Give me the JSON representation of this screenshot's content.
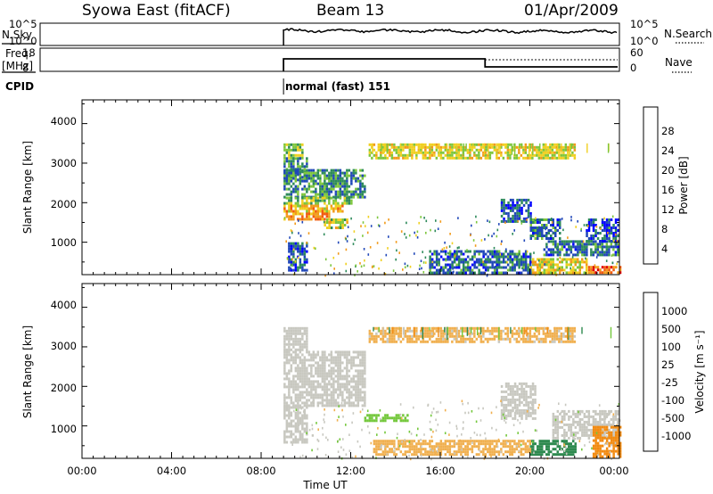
{
  "header": {
    "station": "Syowa East (fitACF)",
    "beam": "Beam 13",
    "date": "01/Apr/2009"
  },
  "panels": {
    "nsky": {
      "label": "N.Sky",
      "ticks_left": [
        "10^5",
        "10^0"
      ],
      "ticks_right": [
        "10^5",
        "10^0"
      ],
      "right_label": "N.Search"
    },
    "freq": {
      "label_line1": "Freq.",
      "label_line2": "[MHz]",
      "ticks_left": [
        "18",
        "8"
      ],
      "ticks_right": [
        "60",
        "0"
      ],
      "right_label": "Nave"
    },
    "cpid": {
      "label": "CPID",
      "value": "normal (fast) 151"
    }
  },
  "power_panel": {
    "ylabel": "Slant Range [km]",
    "yticks": [
      "4000",
      "3000",
      "2000",
      "1000"
    ],
    "colorbar_label": "Power [dB]",
    "colorbar_ticks": [
      "28",
      "24",
      "20",
      "16",
      "12",
      "8",
      "4"
    ],
    "colors": [
      "#0000ff",
      "#2047b8",
      "#2d8a5a",
      "#7dc63c",
      "#f0d020",
      "#f29a1a",
      "#f05a10",
      "#e00000"
    ]
  },
  "velocity_panel": {
    "ylabel": "Slant Range [km]",
    "yticks": [
      "4000",
      "3000",
      "2000",
      "1000"
    ],
    "colorbar_label": "Velocity [m s⁻¹]",
    "colorbar_ticks": [
      "1000",
      "500",
      "100",
      "25",
      "-25",
      "-100",
      "-500",
      "-1000"
    ],
    "colors": [
      "#1010c8",
      "#2a58b0",
      "#2f8a50",
      "#74c83c",
      "#c8c8c0",
      "#f0b050",
      "#f28a10",
      "#f04010",
      "#e00000"
    ]
  },
  "xaxis": {
    "label": "Time UT",
    "ticks": [
      "00:00",
      "04:00",
      "08:00",
      "12:00",
      "16:00",
      "20:00",
      "00:00"
    ]
  },
  "chart_data": {
    "type": "heatmap",
    "title": "Syowa East (fitACF)",
    "xlabel": "Time UT",
    "ylabel": "Slant Range [km]",
    "xlim_hours": [
      0,
      24
    ],
    "ylim_km": [
      180,
      4600
    ],
    "data_start_hour": 9.0,
    "freq_step_hour": 18.0,
    "power_regions": [
      {
        "t0": 9.0,
        "t1": 9.8,
        "r0": 3150,
        "r1": 3500,
        "v": 14
      },
      {
        "t0": 9.0,
        "t1": 10.0,
        "r0": 2600,
        "r1": 3150,
        "v": 10
      },
      {
        "t0": 9.0,
        "t1": 12.6,
        "r0": 2150,
        "r1": 2850,
        "v": 10
      },
      {
        "t0": 9.0,
        "t1": 12.0,
        "r0": 1950,
        "r1": 2150,
        "v": 14
      },
      {
        "t0": 9.0,
        "t1": 11.6,
        "r0": 1750,
        "r1": 1950,
        "v": 20
      },
      {
        "t0": 9.0,
        "t1": 11.0,
        "r0": 1600,
        "r1": 1750,
        "v": 23
      },
      {
        "t0": 10.8,
        "t1": 11.8,
        "r0": 1350,
        "r1": 1600,
        "v": 16
      },
      {
        "t0": 9.2,
        "t1": 10.0,
        "r0": 300,
        "r1": 1000,
        "v": 7
      },
      {
        "t0": 18.7,
        "t1": 20.0,
        "r0": 1500,
        "r1": 2100,
        "v": 7
      },
      {
        "t0": 20.0,
        "t1": 21.3,
        "r0": 1100,
        "r1": 1600,
        "v": 8
      },
      {
        "t0": 20.6,
        "t1": 23.9,
        "r0": 700,
        "r1": 1050,
        "v": 8
      },
      {
        "t0": 22.5,
        "t1": 23.9,
        "r0": 1050,
        "r1": 1600,
        "v": 6
      },
      {
        "t0": 20.0,
        "t1": 22.5,
        "r0": 250,
        "r1": 600,
        "v": 18
      },
      {
        "t0": 22.6,
        "t1": 24.0,
        "r0": 200,
        "r1": 400,
        "v": 25
      },
      {
        "t0": 15.5,
        "t1": 20.0,
        "r0": 250,
        "r1": 800,
        "v": 8
      },
      {
        "t0": 12.8,
        "t1": 22.0,
        "r0": 3150,
        "r1": 3500,
        "v": 17
      }
    ],
    "velocity_regions": [
      {
        "t0": 9.0,
        "t1": 12.6,
        "r0": 1500,
        "r1": 2900,
        "v": 0
      },
      {
        "t0": 9.0,
        "t1": 10.0,
        "r0": 2900,
        "r1": 3500,
        "v": 0
      },
      {
        "t0": 9.0,
        "t1": 10.0,
        "r0": 600,
        "r1": 1500,
        "v": 0
      },
      {
        "t0": 18.7,
        "t1": 20.2,
        "r0": 1200,
        "r1": 2100,
        "v": 0
      },
      {
        "t0": 21.0,
        "t1": 23.9,
        "r0": 700,
        "r1": 1400,
        "v": 0
      },
      {
        "t0": 20.0,
        "t1": 22.0,
        "r0": 300,
        "r1": 650,
        "v": 120
      },
      {
        "t0": 22.8,
        "t1": 24.0,
        "r0": 250,
        "r1": 1000,
        "v": -350
      },
      {
        "t0": 12.5,
        "t1": 14.5,
        "r0": 1100,
        "r1": 1300,
        "v": 80
      },
      {
        "t0": 13.0,
        "t1": 20.0,
        "r0": 250,
        "r1": 650,
        "v": -60
      },
      {
        "t0": 12.8,
        "t1": 22.0,
        "r0": 3150,
        "r1": 3500,
        "v": -40
      }
    ]
  }
}
